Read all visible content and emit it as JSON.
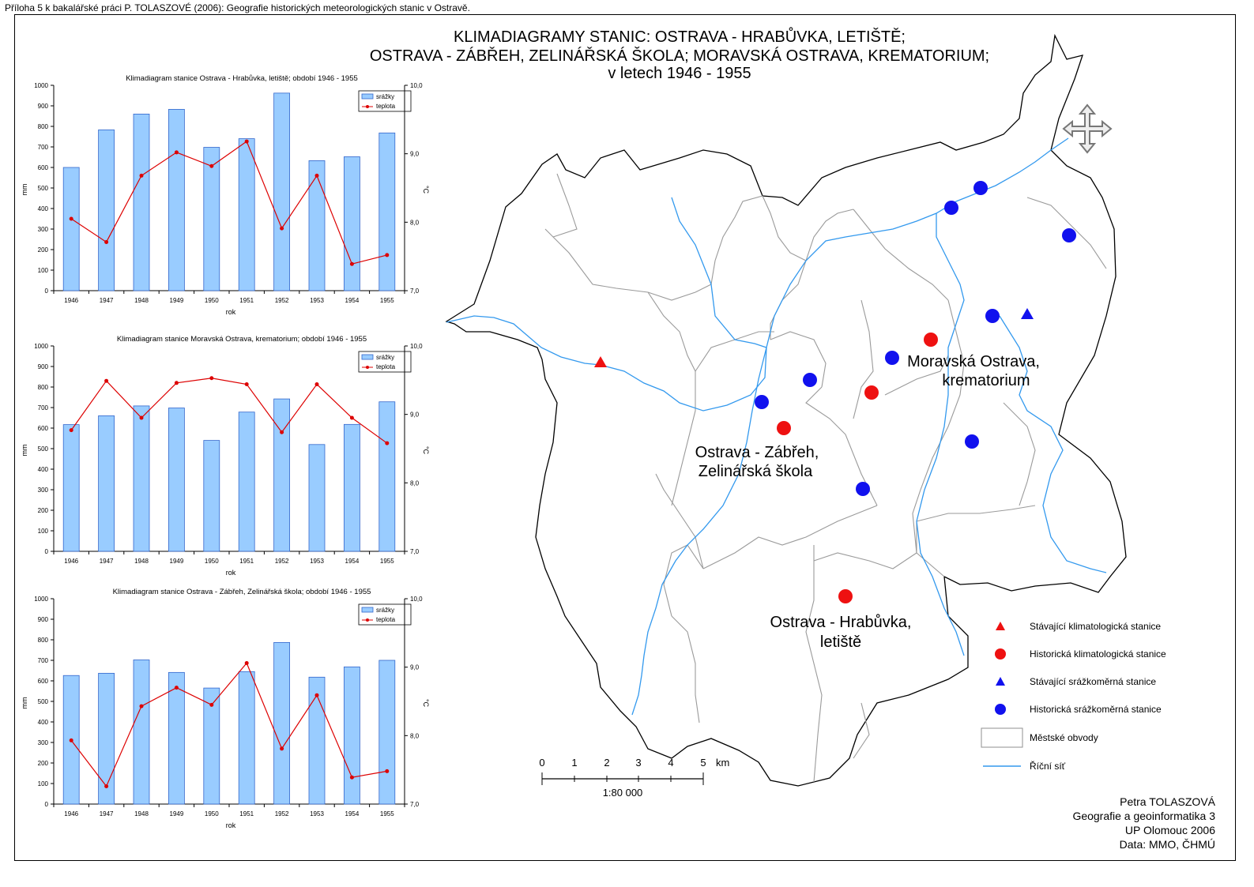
{
  "caption": "Příloha 5 k bakalářské práci P. TOLASZOVÉ (2006): Geografie historických meteorologických stanic v Ostravě.",
  "title": {
    "line1": "KLIMADIAGRAMY STANIC: OSTRAVA - HRABŮVKA, LETIŠTĚ;",
    "line2": "OSTRAVA - ZÁBŘEH, ZELINÁŘSKÁ ŠKOLA; MORAVSKÁ OSTRAVA, KREMATORIUM;",
    "line3": "v letech 1946 - 1955"
  },
  "colors": {
    "bar_fill": "#99ccff",
    "bar_stroke": "#3366cc",
    "temp_line": "#dd0000",
    "red_marker": "#ee1111",
    "blue_marker": "#1111ee",
    "river": "#3399ee",
    "boundary_outer": "#000000",
    "boundary_inner": "#999999"
  },
  "chart_data": [
    {
      "type": "bar+line",
      "title": "Klimadiagram stanice Ostrava - Hrabůvka, letiště; období 1946 - 1955",
      "categories": [
        "1946",
        "1947",
        "1948",
        "1949",
        "1950",
        "1951",
        "1952",
        "1953",
        "1954",
        "1955"
      ],
      "xlabel": "rok",
      "ylabel": "mm",
      "y2label": "°C",
      "ylim": [
        0,
        1000
      ],
      "yticks": [
        "0",
        "100",
        "200",
        "300",
        "400",
        "500",
        "600",
        "700",
        "800",
        "900",
        "1000"
      ],
      "y2lim": [
        7.0,
        10.0
      ],
      "y2ticks": [
        "7,0",
        "8,0",
        "9,0",
        "10,0"
      ],
      "legend": [
        "srážky",
        "teplota"
      ],
      "series": [
        {
          "name": "srážky",
          "kind": "bar",
          "values": [
            600,
            783,
            860,
            883,
            698,
            740,
            962,
            633,
            652,
            768
          ]
        },
        {
          "name": "teplota",
          "kind": "line",
          "values": [
            8.05,
            7.71,
            8.68,
            9.02,
            8.82,
            9.18,
            7.91,
            8.68,
            7.39,
            7.52
          ]
        }
      ]
    },
    {
      "type": "bar+line",
      "title": "Klimadiagram stanice Moravská Ostrava, krematorium; období 1946 - 1955",
      "categories": [
        "1946",
        "1947",
        "1948",
        "1949",
        "1950",
        "1951",
        "1952",
        "1953",
        "1954",
        "1955"
      ],
      "xlabel": "rok",
      "ylabel": "mm",
      "y2label": "°C",
      "ylim": [
        0,
        1000
      ],
      "yticks": [
        "0",
        "100",
        "200",
        "300",
        "400",
        "500",
        "600",
        "700",
        "800",
        "900",
        "1000"
      ],
      "y2lim": [
        7.0,
        10.0
      ],
      "y2ticks": [
        "7,0",
        "8,0",
        "9,0",
        "10,0"
      ],
      "legend": [
        "srážky",
        "teplota"
      ],
      "series": [
        {
          "name": "srážky",
          "kind": "bar",
          "values": [
            617,
            660,
            708,
            698,
            540,
            678,
            742,
            520,
            618,
            728
          ]
        },
        {
          "name": "teplota",
          "kind": "line",
          "values": [
            8.77,
            9.49,
            8.95,
            9.46,
            9.53,
            9.44,
            8.74,
            9.44,
            8.95,
            8.58
          ]
        }
      ]
    },
    {
      "type": "bar+line",
      "title": "Klimadiagram stanice Ostrava - Zábřeh, Zelinářská škola; období 1946 - 1955",
      "categories": [
        "1946",
        "1947",
        "1948",
        "1949",
        "1950",
        "1951",
        "1952",
        "1953",
        "1954",
        "1955"
      ],
      "xlabel": "rok",
      "ylabel": "mm",
      "y2label": "°C",
      "ylim": [
        0,
        1000
      ],
      "yticks": [
        "0",
        "100",
        "200",
        "300",
        "400",
        "500",
        "600",
        "700",
        "800",
        "900",
        "1000"
      ],
      "y2lim": [
        7.0,
        10.0
      ],
      "y2ticks": [
        "7,0",
        "8,0",
        "9,0",
        "10,0"
      ],
      "legend": [
        "srážky",
        "teplota"
      ],
      "series": [
        {
          "name": "srážky",
          "kind": "bar",
          "values": [
            626,
            637,
            702,
            641,
            565,
            645,
            787,
            618,
            668,
            700
          ]
        },
        {
          "name": "teplota",
          "kind": "line",
          "values": [
            7.93,
            7.26,
            8.43,
            8.7,
            8.45,
            9.06,
            7.81,
            8.59,
            7.39,
            7.48
          ]
        }
      ]
    }
  ],
  "map": {
    "labels": {
      "moravska1": "Moravská Ostrava,",
      "moravska2": "krematorium",
      "zabreh1": "Ostrava - Zábřeh,",
      "zabreh2": "Zelinářská škola",
      "hrabuvka1": "Ostrava - Hrabůvka,",
      "hrabuvka2": "letiště"
    },
    "legend": {
      "current_climate": "Stávající klimatologická stanice",
      "historic_climate": "Historická klimatologická stanice",
      "current_precip": "Stávající srážkoměrná stanice",
      "historic_precip": "Historická srážkoměrná stanice",
      "districts": "Městské obvody",
      "rivers": "Říční síť"
    },
    "scale": {
      "ticks": [
        "0",
        "1",
        "2",
        "3",
        "4",
        "5"
      ],
      "unit": "km",
      "ratio": "1:80 000"
    },
    "north_arrow_icon": "north-arrow-icon"
  },
  "credits": {
    "author": "Petra TOLASZOVÁ",
    "line2": "Geografie a geoinformatika 3",
    "line3": "UP Olomouc 2006",
    "line4": "Data: MMO, ČHMÚ"
  }
}
